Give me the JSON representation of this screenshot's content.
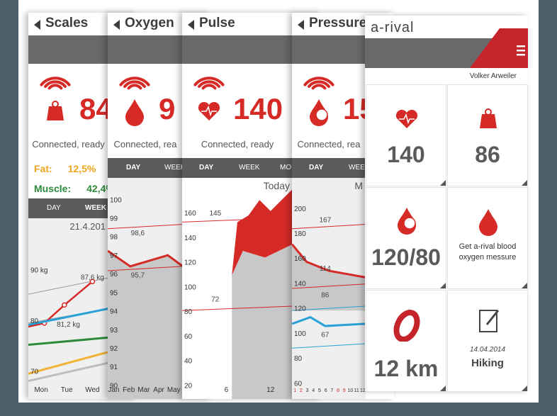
{
  "screens": [
    {
      "title": "Scales",
      "reading": "84",
      "status": "Connected, ready",
      "stats": [
        {
          "label": "Fat:",
          "value": "12,5%"
        },
        {
          "label": "Muscle:",
          "value": "42,4%"
        }
      ],
      "tabs": [
        "DAY",
        "WEEK"
      ],
      "period": "21.4.201",
      "y_labels": [
        "90 kg",
        "80",
        "70"
      ],
      "annotations": [
        "87,6 kg",
        "81,2 kg"
      ],
      "x_labels": [
        "Mon",
        "Tue",
        "Wed"
      ]
    },
    {
      "title": "Oxygen",
      "reading": "9",
      "status": "Connected, rea",
      "tabs": [
        "DAY",
        "WEEK"
      ],
      "y_labels": [
        "100",
        "99",
        "98",
        "97",
        "96",
        "95",
        "94",
        "93",
        "92",
        "91",
        "90"
      ],
      "annotations": [
        "98,6",
        "95,7"
      ],
      "x_labels": [
        "Jan",
        "Feb",
        "Mar",
        "Apr",
        "May"
      ]
    },
    {
      "title": "Pulse",
      "reading": "140",
      "status": "Connected, ready",
      "tabs": [
        "DAY",
        "WEEK",
        "MO"
      ],
      "period": "Today",
      "y_labels": [
        "160",
        "140",
        "120",
        "100",
        "80",
        "60",
        "40",
        "20"
      ],
      "annotations": [
        "145",
        "72"
      ],
      "x_labels": [
        "6",
        "12"
      ]
    },
    {
      "title": "Pressure",
      "reading": "15",
      "status": "Connected, rea",
      "tabs": [
        "DAY",
        "WEE"
      ],
      "period": "M",
      "y_labels": [
        "200",
        "180",
        "160",
        "140",
        "120",
        "100",
        "80",
        "60"
      ],
      "annotations": [
        "167",
        "114",
        "86",
        "67"
      ],
      "x_labels": [
        "1",
        "2",
        "3",
        "4",
        "5",
        "6",
        "7",
        "8",
        "9",
        "10",
        "11",
        "12"
      ]
    }
  ],
  "dashboard": {
    "logo": "a-rival",
    "user": "Volker Arweiler",
    "tiles": [
      {
        "value": "140"
      },
      {
        "value": "86"
      },
      {
        "value": "120/80"
      },
      {
        "text": "Get a-rival blood oxygen messure"
      },
      {
        "value": "12 km"
      },
      {
        "date": "14.04.2014",
        "activity": "Hiking"
      }
    ]
  }
}
